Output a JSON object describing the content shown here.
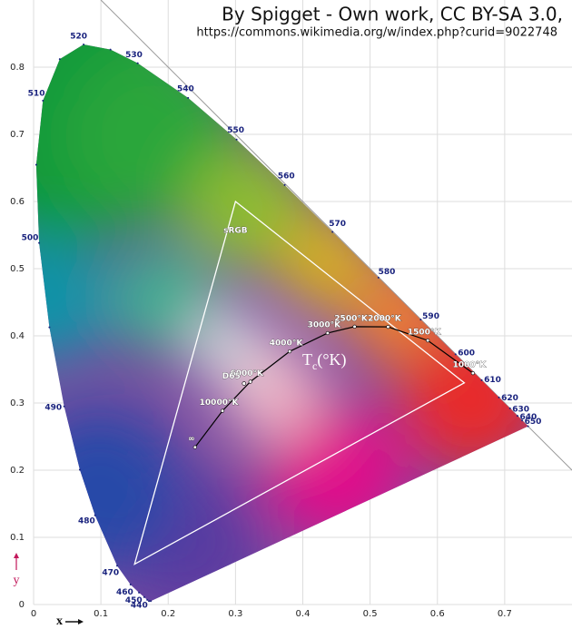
{
  "chart_data": {
    "type": "chromaticity",
    "title": "By Spigget - Own work, CC BY-SA 3.0,",
    "subtitle": "https://commons.wikimedia.org/w/index.php?curid=9022748",
    "x_label": "x",
    "y_label": "y",
    "xlim": [
      0,
      0.8
    ],
    "ylim": [
      0,
      0.9
    ],
    "xticks": [
      0,
      0.1,
      0.2,
      0.3,
      0.4,
      0.5,
      0.6,
      0.7
    ],
    "yticks": [
      0,
      0.1,
      0.2,
      0.3,
      0.4,
      0.5,
      0.6,
      0.7,
      0.8
    ],
    "grid": true,
    "locus": {
      "label_color": "#1a237e",
      "x": [
        0.1741,
        0.1714,
        0.1689,
        0.1644,
        0.1566,
        0.144,
        0.1241,
        0.0913,
        0.0687,
        0.0454,
        0.0235,
        0.0082,
        0.0039,
        0.0139,
        0.0389,
        0.0743,
        0.1142,
        0.1547,
        0.2296,
        0.3016,
        0.3731,
        0.4441,
        0.5125,
        0.5752,
        0.627,
        0.6658,
        0.6915,
        0.7079,
        0.719,
        0.726,
        0.7347
      ],
      "y": [
        0.005,
        0.0051,
        0.0069,
        0.0109,
        0.0177,
        0.0297,
        0.0578,
        0.1327,
        0.2007,
        0.295,
        0.4127,
        0.5384,
        0.6548,
        0.7502,
        0.812,
        0.8338,
        0.8262,
        0.8059,
        0.7543,
        0.6923,
        0.6245,
        0.5547,
        0.4866,
        0.4242,
        0.3725,
        0.334,
        0.3083,
        0.292,
        0.2809,
        0.274,
        0.2653
      ],
      "labels": [
        null,
        null,
        null,
        "440",
        "450",
        "460",
        "470",
        "480",
        null,
        "490",
        null,
        "500",
        null,
        "510",
        null,
        "520",
        null,
        "530",
        "540",
        "550",
        "560",
        "570",
        "580",
        "590",
        "600",
        "610",
        "620",
        "630",
        "640",
        "650",
        null
      ]
    },
    "gamut": {
      "name": "sRGB",
      "color": "#ffffff",
      "x": [
        0.64,
        0.3,
        0.15
      ],
      "y": [
        0.33,
        0.6,
        0.06
      ]
    },
    "planckian": {
      "color": "#000000",
      "x": [
        0.6528,
        0.5857,
        0.5267,
        0.477,
        0.4369,
        0.3805,
        0.3221,
        0.2807,
        0.2399
      ],
      "y": [
        0.3444,
        0.3931,
        0.4133,
        0.4137,
        0.4041,
        0.3768,
        0.3318,
        0.2884,
        0.2342
      ],
      "labels": [
        "1000°K",
        "1500°K",
        "2000°K",
        "2500°K",
        "3000°K",
        "4000°K",
        "6000°K",
        "10000°K",
        "∞"
      ]
    },
    "white_point": {
      "label": "D65",
      "x": 0.3127,
      "y": 0.329
    },
    "temperature_label": {
      "symbol": "T",
      "subscript": "c",
      "unit": "(°K)"
    }
  }
}
